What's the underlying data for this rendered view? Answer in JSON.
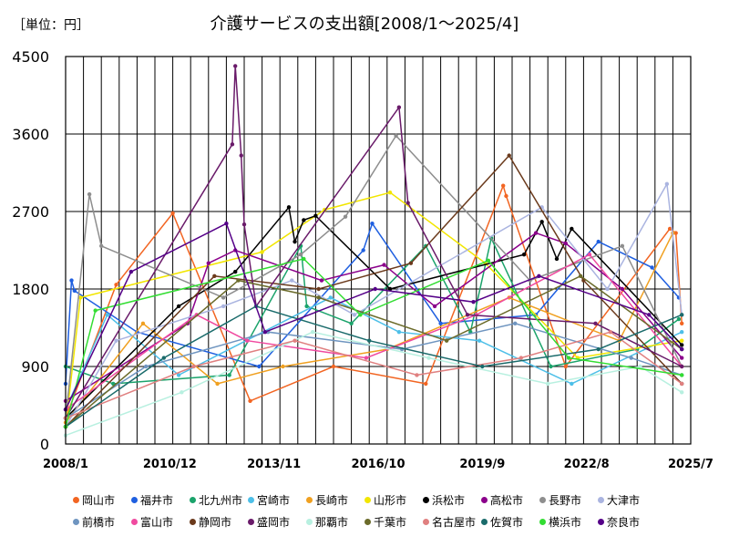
{
  "unit_label": "［単位：円］",
  "chart_data": {
    "type": "line",
    "title": "介護サービスの支出額[2008/1～2025/4]",
    "xlabel": "",
    "ylabel": "",
    "ylim": [
      0,
      4500
    ],
    "yticks": [
      0,
      900,
      1800,
      2700,
      3600,
      4500
    ],
    "xlim": [
      "2008-01",
      "2025-07"
    ],
    "xticks": [
      "2008-01",
      "2010-12",
      "2013-11",
      "2016-10",
      "2019-09",
      "2022-08",
      "2025-07"
    ],
    "xtick_labels": [
      "2008/1",
      "2010/12",
      "2013/11",
      "2016/10",
      "2019/9",
      "2022/8",
      "2025/7"
    ],
    "grid": "vertical-and-horizontal",
    "legend_position": "bottom",
    "note": "",
    "series": [
      {
        "name": "岡山市",
        "color": "#f26522",
        "points": [
          [
            "2008-01",
            300
          ],
          [
            "2009-06",
            1850
          ],
          [
            "2011-01",
            2680
          ],
          [
            "2013-03",
            500
          ],
          [
            "2015-07",
            900
          ],
          [
            "2018-02",
            700
          ],
          [
            "2020-04",
            3000
          ],
          [
            "2020-05",
            2880
          ],
          [
            "2022-01",
            900
          ],
          [
            "2024-12",
            2500
          ],
          [
            "2025-02",
            2450
          ],
          [
            "2025-04",
            1400
          ]
        ]
      },
      {
        "name": "福井市",
        "color": "#1f5fe0",
        "points": [
          [
            "2008-01",
            700
          ],
          [
            "2008-03",
            1900
          ],
          [
            "2008-04",
            1780
          ],
          [
            "2010-01",
            1300
          ],
          [
            "2013-06",
            900
          ],
          [
            "2016-05",
            2250
          ],
          [
            "2016-08",
            2560
          ],
          [
            "2018-07",
            1400
          ],
          [
            "2021-03",
            1500
          ],
          [
            "2022-12",
            2350
          ],
          [
            "2024-06",
            2050
          ],
          [
            "2025-03",
            1700
          ]
        ]
      },
      {
        "name": "北九州市",
        "color": "#1ba36b",
        "points": [
          [
            "2008-01",
            900
          ],
          [
            "2009-05",
            700
          ],
          [
            "2012-08",
            800
          ],
          [
            "2014-08",
            2300
          ],
          [
            "2014-10",
            1600
          ],
          [
            "2016-01",
            1400
          ],
          [
            "2018-02",
            2300
          ],
          [
            "2019-05",
            1300
          ],
          [
            "2019-12",
            2390
          ],
          [
            "2021-08",
            900
          ],
          [
            "2024-01",
            1100
          ],
          [
            "2025-03",
            1450
          ]
        ]
      },
      {
        "name": "宮崎市",
        "color": "#4dbfe8",
        "points": [
          [
            "2008-01",
            400
          ],
          [
            "2009-03",
            1500
          ],
          [
            "2011-03",
            800
          ],
          [
            "2015-06",
            1700
          ],
          [
            "2017-05",
            1300
          ],
          [
            "2019-08",
            1200
          ],
          [
            "2022-03",
            700
          ],
          [
            "2025-04",
            1300
          ]
        ]
      },
      {
        "name": "長崎市",
        "color": "#f0a020",
        "points": [
          [
            "2008-01",
            250
          ],
          [
            "2010-03",
            1400
          ],
          [
            "2012-04",
            700
          ],
          [
            "2014-02",
            900
          ],
          [
            "2017-01",
            1100
          ],
          [
            "2020-06",
            1700
          ],
          [
            "2023-07",
            1200
          ],
          [
            "2025-01",
            2450
          ]
        ]
      },
      {
        "name": "山形市",
        "color": "#f2e600",
        "points": [
          [
            "2008-01",
            200
          ],
          [
            "2008-06",
            1700
          ],
          [
            "2013-07",
            2230
          ],
          [
            "2015-04",
            2720
          ],
          [
            "2017-02",
            2920
          ],
          [
            "2019-10",
            2100
          ],
          [
            "2022-05",
            1000
          ],
          [
            "2025-04",
            1200
          ]
        ]
      },
      {
        "name": "浜松市",
        "color": "#000000",
        "points": [
          [
            "2008-01",
            300
          ],
          [
            "2011-03",
            1600
          ],
          [
            "2012-10",
            2000
          ],
          [
            "2014-04",
            2750
          ],
          [
            "2014-06",
            2350
          ],
          [
            "2014-09",
            2600
          ],
          [
            "2015-01",
            2650
          ],
          [
            "2017-02",
            1800
          ],
          [
            "2020-11",
            2200
          ],
          [
            "2021-05",
            2580
          ],
          [
            "2021-10",
            2150
          ],
          [
            "2022-03",
            2500
          ],
          [
            "2025-04",
            1150
          ]
        ]
      },
      {
        "name": "高松市",
        "color": "#8b008b",
        "points": [
          [
            "2008-01",
            500
          ],
          [
            "2011-06",
            1400
          ],
          [
            "2012-01",
            2100
          ],
          [
            "2012-10",
            2250
          ],
          [
            "2015-03",
            1900
          ],
          [
            "2016-12",
            2080
          ],
          [
            "2018-05",
            1600
          ],
          [
            "2021-03",
            2450
          ],
          [
            "2022-01",
            2330
          ],
          [
            "2023-08",
            1800
          ],
          [
            "2025-04",
            1000
          ]
        ]
      },
      {
        "name": "長野市",
        "color": "#8e8e8e",
        "points": [
          [
            "2008-01",
            300
          ],
          [
            "2008-09",
            2900
          ],
          [
            "2009-01",
            2300
          ],
          [
            "2012-06",
            1700
          ],
          [
            "2014-08",
            2200
          ],
          [
            "2015-11",
            2640
          ],
          [
            "2017-04",
            3580
          ],
          [
            "2021-01",
            1900
          ],
          [
            "2023-08",
            2300
          ],
          [
            "2025-04",
            900
          ]
        ]
      },
      {
        "name": "大津市",
        "color": "#aab4e0",
        "points": [
          [
            "2008-01",
            200
          ],
          [
            "2009-06",
            1200
          ],
          [
            "2012-06",
            1600
          ],
          [
            "2014-05",
            1900
          ],
          [
            "2016-02",
            1500
          ],
          [
            "2021-05",
            2750
          ],
          [
            "2023-03",
            1800
          ],
          [
            "2024-11",
            3020
          ],
          [
            "2025-04",
            1500
          ]
        ]
      },
      {
        "name": "前橋市",
        "color": "#6f95c0",
        "points": [
          [
            "2008-01",
            300
          ],
          [
            "2010-04",
            900
          ],
          [
            "2013-09",
            1300
          ],
          [
            "2017-06",
            1100
          ],
          [
            "2020-08",
            1400
          ],
          [
            "2023-11",
            1000
          ],
          [
            "2025-04",
            800
          ]
        ]
      },
      {
        "name": "富山市",
        "color": "#f04aa0",
        "points": [
          [
            "2008-01",
            400
          ],
          [
            "2011-09",
            1500
          ],
          [
            "2013-02",
            1200
          ],
          [
            "2016-06",
            1000
          ],
          [
            "2019-07",
            1500
          ],
          [
            "2022-09",
            2200
          ],
          [
            "2025-04",
            900
          ]
        ]
      },
      {
        "name": "静岡市",
        "color": "#6b3a1c",
        "points": [
          [
            "2008-01",
            200
          ],
          [
            "2012-03",
            1950
          ],
          [
            "2015-02",
            1800
          ],
          [
            "2017-09",
            2100
          ],
          [
            "2020-06",
            3350
          ],
          [
            "2022-07",
            1900
          ],
          [
            "2025-04",
            700
          ]
        ]
      },
      {
        "name": "盛岡市",
        "color": "#6a1b6a",
        "points": [
          [
            "2008-01",
            300
          ],
          [
            "2012-09",
            3480
          ],
          [
            "2012-10",
            4390
          ],
          [
            "2012-12",
            3350
          ],
          [
            "2013-01",
            2550
          ],
          [
            "2013-05",
            1600
          ],
          [
            "2017-05",
            3910
          ],
          [
            "2017-08",
            2800
          ],
          [
            "2019-04",
            1500
          ],
          [
            "2022-11",
            1400
          ],
          [
            "2025-04",
            900
          ]
        ]
      },
      {
        "name": "那覇市",
        "color": "#b8f0e0",
        "points": [
          [
            "2008-01",
            100
          ],
          [
            "2011-04",
            600
          ],
          [
            "2014-12",
            1300
          ],
          [
            "2018-03",
            1000
          ],
          [
            "2021-07",
            700
          ],
          [
            "2024-02",
            900
          ],
          [
            "2025-04",
            600
          ]
        ]
      },
      {
        "name": "千葉市",
        "color": "#6b6b2a",
        "points": [
          [
            "2008-01",
            200
          ],
          [
            "2012-11",
            1900
          ],
          [
            "2015-02",
            1700
          ],
          [
            "2018-09",
            1200
          ],
          [
            "2022-06",
            1950
          ],
          [
            "2025-04",
            1100
          ]
        ]
      },
      {
        "name": "名古屋市",
        "color": "#e08080",
        "points": [
          [
            "2008-01",
            300
          ],
          [
            "2011-08",
            900
          ],
          [
            "2014-06",
            1200
          ],
          [
            "2017-11",
            800
          ],
          [
            "2020-10",
            1000
          ],
          [
            "2023-04",
            1300
          ],
          [
            "2025-04",
            700
          ]
        ]
      },
      {
        "name": "佐賀市",
        "color": "#1a6b6b",
        "points": [
          [
            "2008-01",
            200
          ],
          [
            "2010-10",
            1000
          ],
          [
            "2013-05",
            1600
          ],
          [
            "2016-07",
            1200
          ],
          [
            "2019-09",
            900
          ],
          [
            "2022-12",
            1100
          ],
          [
            "2025-04",
            1500
          ]
        ]
      },
      {
        "name": "横浜市",
        "color": "#33dd33",
        "points": [
          [
            "2008-01",
            200
          ],
          [
            "2008-11",
            1550
          ],
          [
            "2014-09",
            2150
          ],
          [
            "2016-04",
            1500
          ],
          [
            "2019-11",
            2130
          ],
          [
            "2022-02",
            1000
          ],
          [
            "2025-04",
            800
          ]
        ]
      },
      {
        "name": "奈良市",
        "color": "#550088",
        "points": [
          [
            "2008-01",
            400
          ],
          [
            "2009-11",
            2000
          ],
          [
            "2012-07",
            2560
          ],
          [
            "2013-08",
            1300
          ],
          [
            "2016-09",
            1800
          ],
          [
            "2019-06",
            1650
          ],
          [
            "2021-04",
            1950
          ],
          [
            "2024-05",
            1500
          ],
          [
            "2025-04",
            1100
          ]
        ]
      }
    ]
  }
}
